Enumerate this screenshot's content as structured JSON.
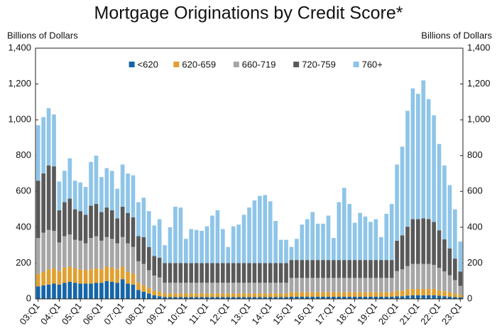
{
  "chart_data": {
    "type": "stacked_bar",
    "title": "Mortgage Originations by Credit Score*",
    "y_label": "Billions of Dollars",
    "y2_label": "Billions of Dollars",
    "categories": [
      "03:Q1",
      null,
      null,
      null,
      "04:Q1",
      null,
      null,
      null,
      "05:Q1",
      null,
      null,
      null,
      "06:Q1",
      null,
      null,
      null,
      "07:Q1",
      null,
      null,
      null,
      "08:Q1",
      null,
      null,
      null,
      "09:Q1",
      null,
      null,
      null,
      "10:Q1",
      null,
      null,
      null,
      "11:Q1",
      null,
      null,
      null,
      "12:Q1",
      null,
      null,
      null,
      "13:Q1",
      null,
      null,
      null,
      "14:Q1",
      null,
      null,
      null,
      "15:Q1",
      null,
      null,
      null,
      "16:Q1",
      null,
      null,
      null,
      "17:Q1",
      null,
      null,
      null,
      "18:Q1",
      null,
      null,
      null,
      "19:Q1",
      null,
      null,
      null,
      "20:Q1",
      null,
      null,
      null,
      "21:Q1",
      null,
      null,
      null,
      "22:Q1",
      null,
      null,
      null,
      "23:Q1"
    ],
    "series": [
      {
        "name": "<620",
        "color": "#1565a8",
        "values": [
          70,
          75,
          80,
          85,
          80,
          90,
          95,
          90,
          85,
          85,
          85,
          90,
          90,
          100,
          95,
          90,
          110,
          85,
          80,
          50,
          40,
          30,
          20,
          15,
          10,
          10,
          10,
          10,
          10,
          10,
          10,
          10,
          10,
          10,
          10,
          10,
          10,
          10,
          10,
          10,
          10,
          10,
          10,
          10,
          10,
          10,
          10,
          10,
          12,
          12,
          12,
          12,
          12,
          12,
          12,
          12,
          12,
          12,
          12,
          12,
          12,
          12,
          12,
          12,
          12,
          12,
          12,
          12,
          15,
          15,
          18,
          20,
          20,
          20,
          20,
          20,
          18,
          15,
          12,
          10,
          8
        ]
      },
      {
        "name": "620-659",
        "color": "#e0a030",
        "values": [
          70,
          75,
          85,
          85,
          75,
          85,
          85,
          80,
          80,
          75,
          80,
          80,
          75,
          80,
          80,
          75,
          70,
          65,
          60,
          40,
          35,
          30,
          25,
          25,
          20,
          20,
          20,
          20,
          20,
          20,
          20,
          20,
          20,
          20,
          20,
          20,
          20,
          20,
          20,
          20,
          20,
          20,
          20,
          20,
          20,
          20,
          20,
          20,
          25,
          25,
          25,
          25,
          25,
          25,
          25,
          25,
          25,
          25,
          25,
          25,
          25,
          25,
          25,
          25,
          25,
          25,
          25,
          25,
          30,
          30,
          35,
          35,
          35,
          35,
          35,
          35,
          30,
          28,
          25,
          20,
          15
        ]
      },
      {
        "name": "660-719",
        "color": "#a6a6a6",
        "values": [
          200,
          220,
          220,
          210,
          160,
          175,
          180,
          160,
          160,
          150,
          175,
          180,
          160,
          165,
          160,
          145,
          165,
          160,
          150,
          120,
          120,
          100,
          85,
          80,
          60,
          60,
          60,
          60,
          60,
          60,
          60,
          60,
          60,
          60,
          60,
          60,
          60,
          60,
          60,
          60,
          60,
          60,
          60,
          60,
          60,
          60,
          60,
          60,
          80,
          80,
          80,
          80,
          80,
          80,
          80,
          80,
          80,
          80,
          80,
          80,
          80,
          80,
          80,
          80,
          80,
          80,
          80,
          80,
          110,
          120,
          130,
          140,
          140,
          140,
          140,
          135,
          125,
          110,
          95,
          75,
          50
        ]
      },
      {
        "name": "720-759",
        "color": "#595959",
        "values": [
          320,
          330,
          360,
          360,
          180,
          190,
          200,
          170,
          165,
          160,
          180,
          180,
          160,
          165,
          160,
          140,
          170,
          170,
          165,
          140,
          150,
          130,
          110,
          110,
          110,
          110,
          110,
          110,
          110,
          110,
          110,
          110,
          110,
          110,
          110,
          110,
          110,
          110,
          110,
          110,
          110,
          110,
          110,
          110,
          110,
          110,
          110,
          110,
          100,
          100,
          100,
          100,
          100,
          100,
          100,
          100,
          100,
          100,
          100,
          100,
          100,
          100,
          100,
          100,
          100,
          100,
          100,
          100,
          170,
          190,
          220,
          250,
          250,
          255,
          250,
          240,
          210,
          180,
          150,
          120,
          80
        ]
      },
      {
        "name": "760+",
        "color": "#8ec5e8",
        "values": [
          310,
          315,
          320,
          290,
          160,
          175,
          225,
          160,
          160,
          155,
          245,
          270,
          195,
          220,
          220,
          165,
          235,
          220,
          235,
          190,
          220,
          200,
          170,
          215,
          100,
          200,
          315,
          310,
          135,
          190,
          185,
          180,
          205,
          265,
          295,
          190,
          90,
          205,
          215,
          270,
          310,
          350,
          375,
          380,
          345,
          235,
          130,
          130,
          73,
          118,
          198,
          228,
          268,
          203,
          203,
          248,
          123,
          323,
          403,
          313,
          208,
          263,
          243,
          213,
          228,
          128,
          258,
          313,
          425,
          495,
          647,
          730,
          700,
          770,
          670,
          595,
          482,
          412,
          353,
          275,
          167
        ]
      }
    ],
    "ylim": [
      0,
      1400
    ],
    "yticks": [
      0,
      200,
      400,
      600,
      800,
      {
        "value": 1000,
        "label": "1,000"
      },
      {
        "value": 1200,
        "label": "1,200"
      },
      {
        "value": 1400,
        "label": "1,400"
      }
    ],
    "legend": "top",
    "grid": false
  }
}
